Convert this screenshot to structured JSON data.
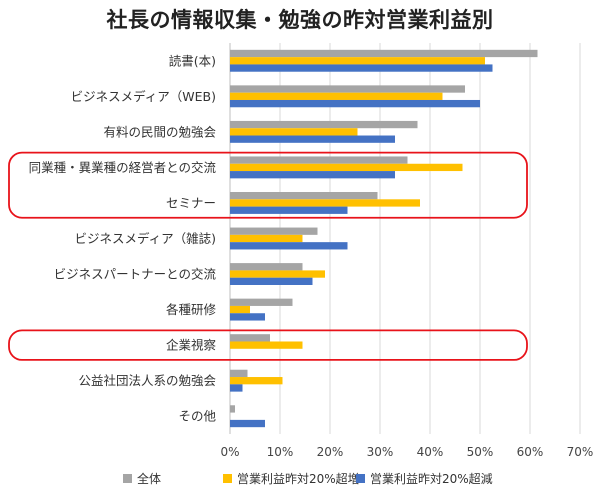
{
  "chart_data": {
    "type": "bar",
    "orientation": "horizontal",
    "title": "社長の情報収集・勉強の昨対営業利益別",
    "categories": [
      "読書(本)",
      "ビジネスメディア（WEB)",
      "有料の民間の勉強会",
      "同業種・異業種の経営者との交流",
      "セミナー",
      "ビジネスメディア（雑誌)",
      "ビジネスパートナーとの交流",
      "各種研修",
      "企業視察",
      "公益社団法人系の勉強会",
      "その他"
    ],
    "series": [
      {
        "name": "全体",
        "color": "#A5A5A5",
        "values": [
          61.5,
          47,
          37.5,
          35.5,
          29.5,
          17.5,
          14.5,
          12.5,
          8,
          3.5,
          1
        ]
      },
      {
        "name": "営業利益昨対20%超増",
        "color": "#FFC000",
        "values": [
          51,
          42.5,
          25.5,
          46.5,
          38,
          14.5,
          19,
          4,
          14.5,
          10.5,
          0
        ]
      },
      {
        "name": "営業利益昨対20%超減",
        "color": "#4472C4",
        "values": [
          52.5,
          50,
          33,
          33,
          23.5,
          23.5,
          16.5,
          7,
          0,
          2.5,
          7
        ]
      }
    ],
    "xlim": [
      0,
      70
    ],
    "xticks": [
      "0%",
      "10%",
      "20%",
      "30%",
      "40%",
      "50%",
      "60%",
      "70%"
    ],
    "grid": "vertical",
    "legend": "bottom",
    "highlights": [
      {
        "categories": [
          "同業種・異業種の経営者との交流",
          "セミナー"
        ],
        "color": "#E8131A"
      },
      {
        "categories": [
          "企業視察"
        ],
        "color": "#E8131A"
      }
    ]
  }
}
